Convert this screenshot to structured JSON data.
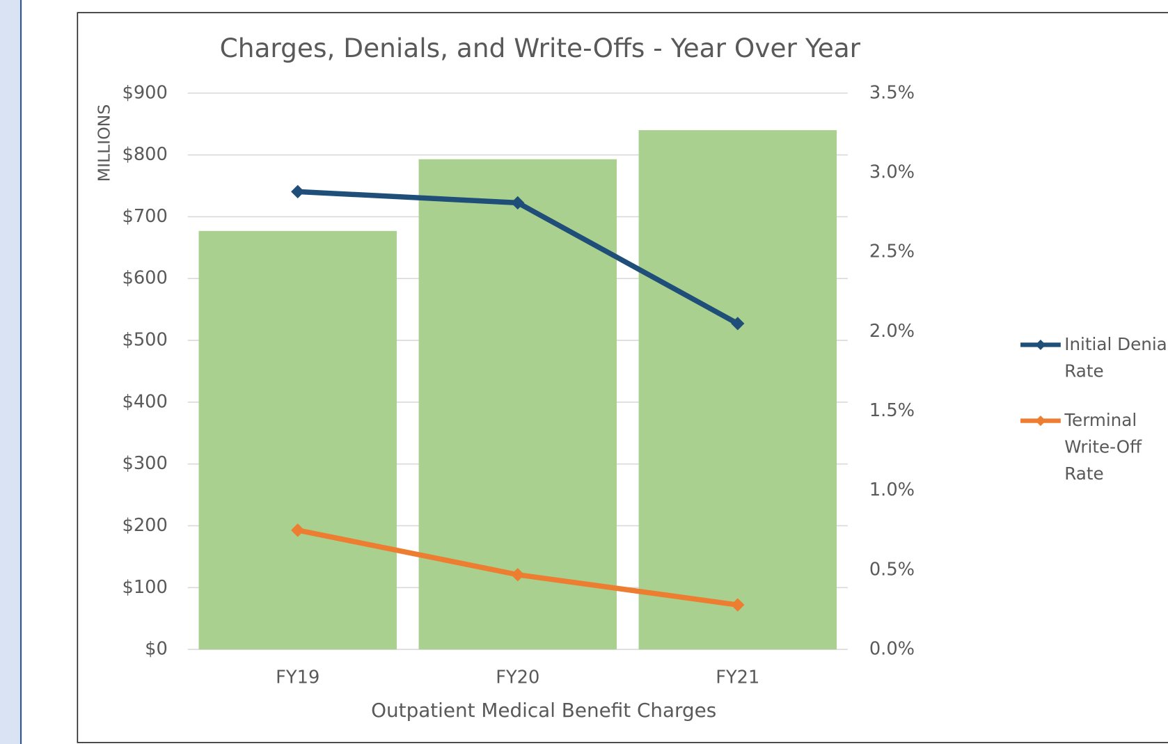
{
  "chart_data": {
    "type": "bar-line",
    "title": "Charges, Denials, and Write-Offs - Year Over Year",
    "y_label": "MILLIONS",
    "x_label": "Outpatient Medical Benefit Charges",
    "categories": [
      "FY19",
      "FY20",
      "FY21"
    ],
    "bars": {
      "color": "#a9d08e",
      "values": [
        677,
        793,
        840
      ]
    },
    "series": [
      {
        "name": "Initial Denial Rate",
        "color": "#1f4e79",
        "axis": "y2",
        "values": [
          2.88,
          2.81,
          2.05
        ]
      },
      {
        "name": "Terminal Write-Off Rate",
        "color": "#ed7d31",
        "axis": "y2",
        "values": [
          0.75,
          0.47,
          0.28
        ]
      }
    ],
    "ylim": [
      0,
      900
    ],
    "yticks": [
      {
        "value": 0,
        "label": "$0"
      },
      {
        "value": 100,
        "label": "$100"
      },
      {
        "value": 200,
        "label": "$200"
      },
      {
        "value": 300,
        "label": "$300"
      },
      {
        "value": 400,
        "label": "$400"
      },
      {
        "value": 500,
        "label": "$500"
      },
      {
        "value": 600,
        "label": "$600"
      },
      {
        "value": 700,
        "label": "$700"
      },
      {
        "value": 800,
        "label": "$800"
      },
      {
        "value": 900,
        "label": "$900"
      }
    ],
    "y2lim": [
      0,
      3.5
    ],
    "y2ticks": [
      {
        "value": 0,
        "label": "0.0%"
      },
      {
        "value": 0.5,
        "label": "0.5%"
      },
      {
        "value": 1,
        "label": "1.0%"
      },
      {
        "value": 1.5,
        "label": "1.5%"
      },
      {
        "value": 2,
        "label": "2.0%"
      },
      {
        "value": 2.5,
        "label": "2.5%"
      },
      {
        "value": 3,
        "label": "3.0%"
      },
      {
        "value": 3.5,
        "label": "3.5%"
      }
    ],
    "grid": true,
    "legend": "right"
  }
}
